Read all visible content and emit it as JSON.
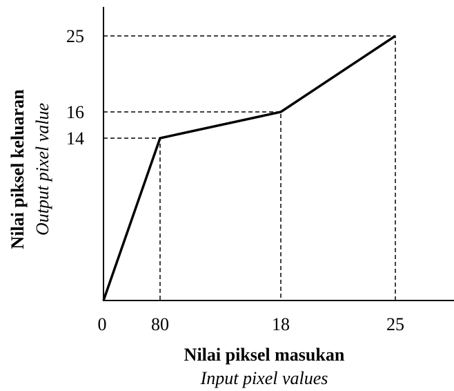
{
  "y_axis": {
    "title": "Nilai piksel keluaran",
    "subtitle": "Output pixel value",
    "tick_labels": [
      "25",
      "16",
      "14"
    ]
  },
  "x_axis": {
    "title": "Nilai piksel masukan",
    "subtitle": "Input pixel values",
    "tick_labels": [
      "0",
      "80",
      "18",
      "25"
    ]
  }
}
